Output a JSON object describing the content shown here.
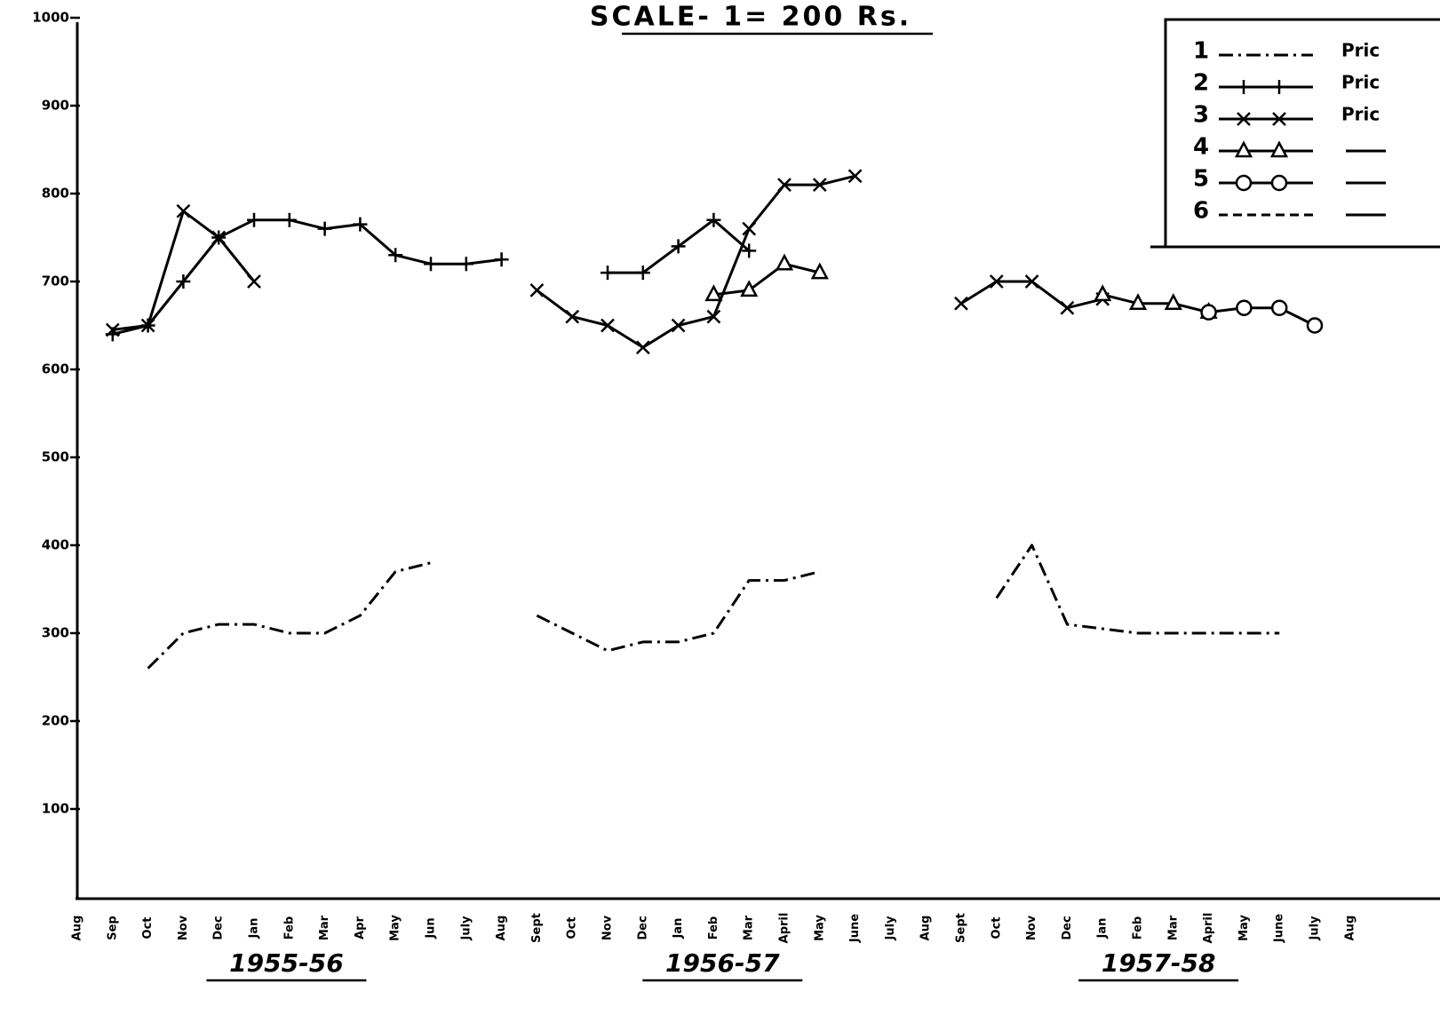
{
  "chart_data": {
    "type": "line",
    "title": "SCALE- 1= 200 Rs.",
    "categories": [
      "Aug",
      "Sep",
      "Oct",
      "Nov",
      "Dec",
      "Jan",
      "Feb",
      "Mar",
      "Apr",
      "May",
      "Jun",
      "July",
      "Aug",
      "Sept",
      "Oct",
      "Nov",
      "Dec",
      "Jan",
      "Feb",
      "Mar",
      "April",
      "May",
      "June",
      "July",
      "Aug",
      "Sept",
      "Oct",
      "Nov",
      "Dec",
      "Jan",
      "Feb",
      "Mar",
      "April",
      "May",
      "June",
      "July",
      "Aug"
    ],
    "periods": [
      "1955-56",
      "1956-57",
      "1957-58"
    ],
    "ylim": [
      0,
      1000
    ],
    "yticks": [
      100,
      200,
      300,
      400,
      500,
      600,
      700,
      800,
      900,
      1000
    ],
    "legend_position": "upper right",
    "series": [
      {
        "name": "1",
        "label": "Pric",
        "color": "#000000",
        "marker": "none",
        "dash": "dashdot",
        "values": [
          null,
          null,
          260,
          300,
          310,
          310,
          300,
          300,
          320,
          370,
          380,
          null,
          null,
          320,
          300,
          280,
          290,
          290,
          300,
          360,
          360,
          370,
          null,
          null,
          null,
          null,
          340,
          400,
          310,
          305,
          300,
          300,
          300,
          300,
          300,
          null,
          null
        ]
      },
      {
        "name": "2",
        "label": "Pric",
        "color": "#000000",
        "marker": "plus",
        "dash": "solid",
        "values": [
          null,
          640,
          650,
          700,
          750,
          770,
          770,
          760,
          765,
          730,
          720,
          720,
          725,
          null,
          null,
          710,
          710,
          740,
          770,
          735,
          null,
          null,
          null,
          null,
          null,
          null,
          null,
          null,
          null,
          null,
          null,
          null,
          null,
          null,
          null,
          null,
          null
        ]
      },
      {
        "name": "3",
        "label": "Pric",
        "color": "#000000",
        "marker": "cross",
        "dash": "solid",
        "values": [
          null,
          645,
          650,
          780,
          750,
          700,
          null,
          null,
          null,
          null,
          null,
          null,
          null,
          690,
          660,
          650,
          625,
          650,
          660,
          760,
          810,
          810,
          820,
          null,
          null,
          675,
          700,
          700,
          670,
          680,
          null,
          null,
          null,
          null,
          null,
          null,
          null
        ]
      },
      {
        "name": "4",
        "color": "#000000",
        "marker": "triangle",
        "dash": "solid",
        "values": [
          null,
          null,
          null,
          null,
          null,
          null,
          null,
          null,
          null,
          null,
          null,
          null,
          null,
          null,
          null,
          null,
          null,
          null,
          685,
          690,
          720,
          710,
          null,
          null,
          null,
          null,
          null,
          null,
          null,
          685,
          675,
          675,
          665,
          null,
          null,
          null,
          null
        ]
      },
      {
        "name": "5",
        "color": "#000000",
        "marker": "circle",
        "dash": "solid",
        "values": [
          null,
          null,
          null,
          null,
          null,
          null,
          null,
          null,
          null,
          null,
          null,
          null,
          null,
          null,
          null,
          null,
          null,
          null,
          null,
          null,
          null,
          null,
          null,
          null,
          null,
          null,
          null,
          null,
          null,
          null,
          null,
          null,
          665,
          670,
          670,
          650,
          null
        ]
      },
      {
        "name": "6",
        "color": "#000000",
        "marker": "none",
        "dash": "dashed",
        "values": [
          null,
          null,
          null,
          null,
          null,
          null,
          null,
          null,
          null,
          null,
          null,
          null,
          null,
          null,
          null,
          null,
          null,
          null,
          null,
          null,
          null,
          null,
          null,
          null,
          null,
          null,
          null,
          null,
          null,
          null,
          null,
          null,
          null,
          null,
          null,
          null,
          null
        ]
      }
    ]
  }
}
